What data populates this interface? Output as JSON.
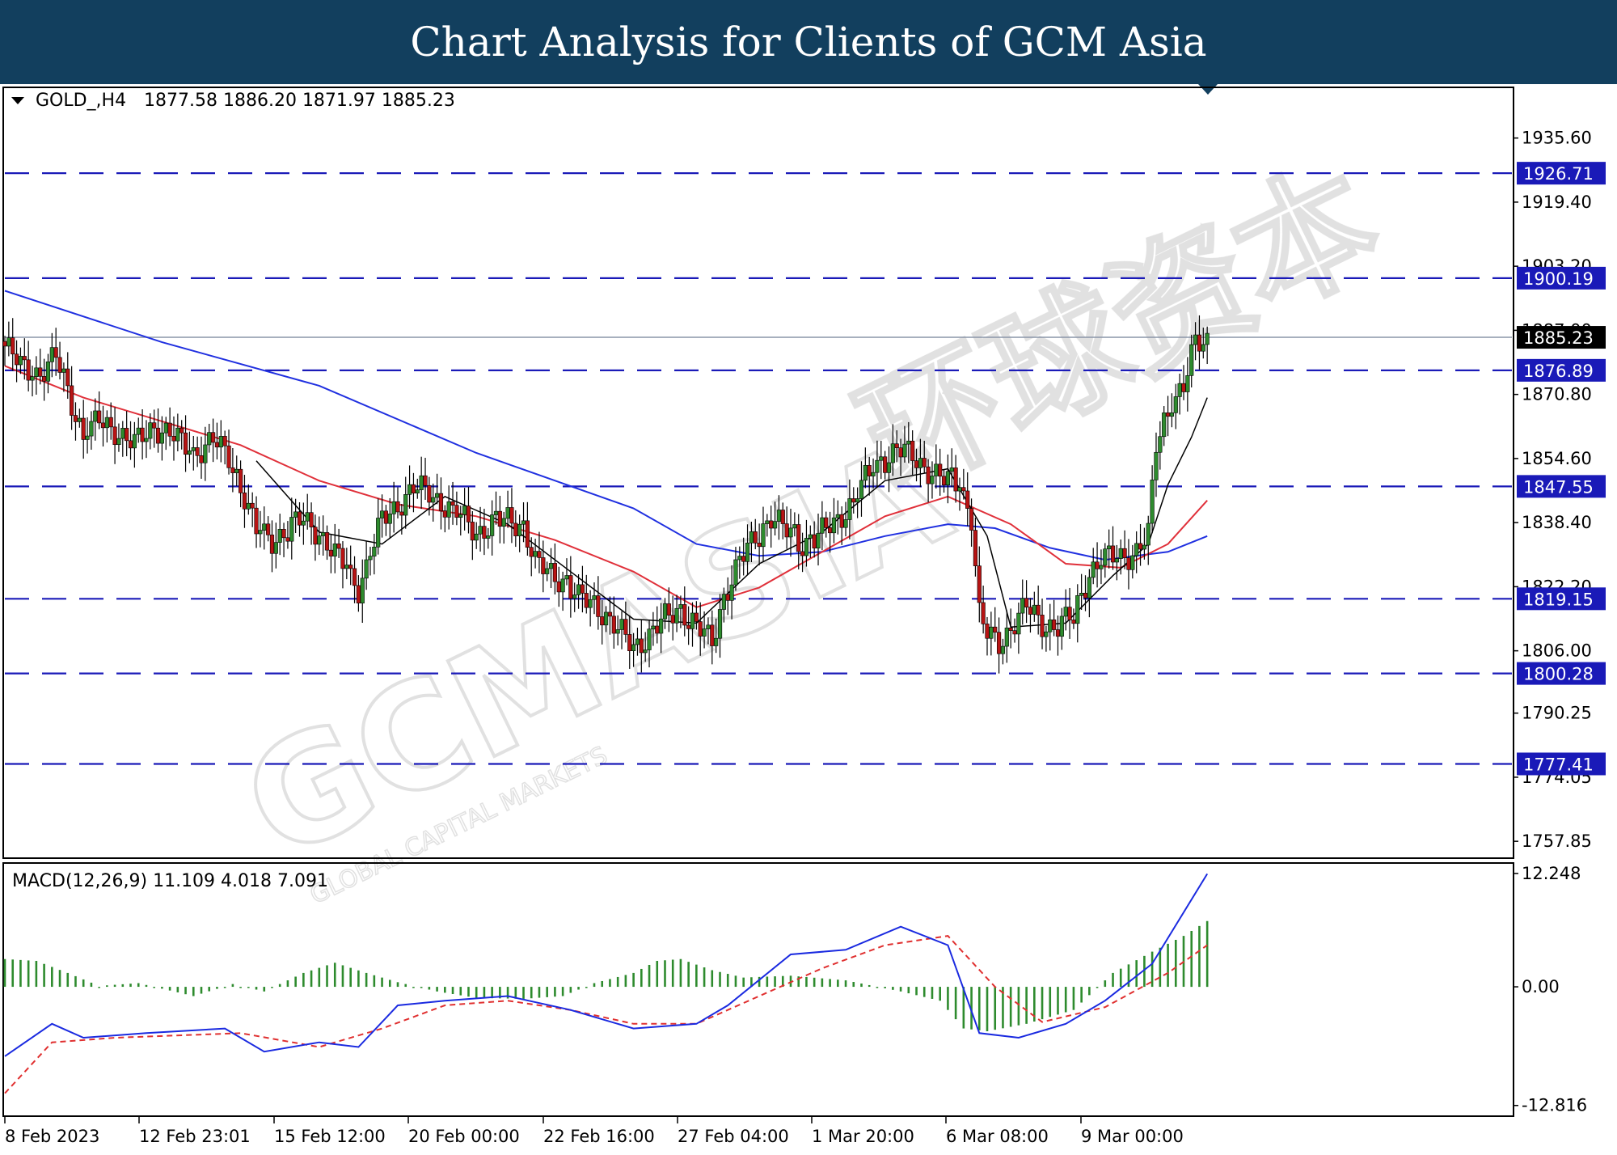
{
  "banner": {
    "title": "Chart Analysis for Clients of GCM Asia"
  },
  "colors": {
    "banner": "#123f5e",
    "level_line": "#1a1ab8",
    "current_price": "#000000",
    "ma_fast": "#000000",
    "ma_mid": "#e0303a",
    "ma_slow": "#2030e0",
    "candle_bull": "#2e8b2e",
    "candle_bear": "#b81414",
    "macd_line": "#1a2ae0",
    "macd_signal": "#e03030",
    "macd_hist": "#2e8b2e"
  },
  "watermark": {
    "text": "GCMASIA",
    "subtext": "GLOBAL CAPITAL MARKETS",
    "cn_text": "环球资本"
  },
  "chart_data": [
    {
      "type": "candlestick",
      "symbol_label": "GOLD_,H4",
      "ohlc_label": "1877.58 1886.20 1871.97 1885.23",
      "ylim": [
        1754,
        1948
      ],
      "price_ticks": [
        "1935.60",
        "1919.40",
        "1903.20",
        "1887.00",
        "1870.80",
        "1854.60",
        "1838.40",
        "1822.20",
        "1806.00",
        "1790.25",
        "1774.05",
        "1757.85"
      ],
      "x_ticks": [
        "8 Feb 2023",
        "12 Feb 23:01",
        "15 Feb 12:00",
        "20 Feb 00:00",
        "22 Feb 16:00",
        "27 Feb 04:00",
        "1 Mar 20:00",
        "6 Mar 08:00",
        "9 Mar 00:00"
      ],
      "level_lines": [
        "1926.71",
        "1900.19",
        "1876.89",
        "1847.55",
        "1819.15",
        "1800.28",
        "1777.41"
      ],
      "current_price": "1885.23",
      "close_path": [
        [
          0,
          1883
        ],
        [
          4,
          1878
        ],
        [
          9,
          1876
        ],
        [
          13,
          1880
        ],
        [
          16,
          1872
        ],
        [
          20,
          1860
        ],
        [
          24,
          1864
        ],
        [
          28,
          1862
        ],
        [
          33,
          1858
        ],
        [
          38,
          1863
        ],
        [
          43,
          1860
        ],
        [
          48,
          1856
        ],
        [
          53,
          1859
        ],
        [
          57,
          1855
        ],
        [
          61,
          1845
        ],
        [
          64,
          1836
        ],
        [
          68,
          1834
        ],
        [
          72,
          1837
        ],
        [
          76,
          1839
        ],
        [
          80,
          1836
        ],
        [
          84,
          1830
        ],
        [
          87,
          1827
        ],
        [
          90,
          1822
        ],
        [
          93,
          1830
        ],
        [
          96,
          1839
        ],
        [
          100,
          1843
        ],
        [
          104,
          1847
        ],
        [
          108,
          1846
        ],
        [
          112,
          1843
        ],
        [
          116,
          1840
        ],
        [
          120,
          1836
        ],
        [
          124,
          1838
        ],
        [
          128,
          1839
        ],
        [
          132,
          1838
        ],
        [
          135,
          1828
        ],
        [
          138,
          1826
        ],
        [
          142,
          1824
        ],
        [
          146,
          1819
        ],
        [
          150,
          1818
        ],
        [
          153,
          1815
        ],
        [
          156,
          1811
        ],
        [
          160,
          1807
        ],
        [
          164,
          1810
        ],
        [
          168,
          1814
        ],
        [
          172,
          1817
        ],
        [
          176,
          1812
        ],
        [
          180,
          1808
        ],
        [
          183,
          1820
        ],
        [
          187,
          1828
        ],
        [
          191,
          1835
        ],
        [
          195,
          1840
        ],
        [
          199,
          1836
        ],
        [
          203,
          1833
        ],
        [
          207,
          1835
        ],
        [
          211,
          1838
        ],
        [
          215,
          1843
        ],
        [
          219,
          1849
        ],
        [
          223,
          1854
        ],
        [
          227,
          1857
        ],
        [
          231,
          1855
        ],
        [
          235,
          1852
        ],
        [
          239,
          1849
        ],
        [
          243,
          1848
        ],
        [
          246,
          1840
        ],
        [
          248,
          1815
        ],
        [
          250,
          1810
        ],
        [
          253,
          1808
        ],
        [
          256,
          1812
        ],
        [
          260,
          1817
        ],
        [
          264,
          1813
        ],
        [
          268,
          1812
        ],
        [
          272,
          1815
        ],
        [
          276,
          1826
        ],
        [
          280,
          1829
        ],
        [
          284,
          1830
        ],
        [
          288,
          1831
        ],
        [
          291,
          1835
        ],
        [
          293,
          1858
        ],
        [
          296,
          1868
        ],
        [
          300,
          1872
        ],
        [
          303,
          1884
        ],
        [
          306,
          1885
        ]
      ],
      "ma_fast_path": [
        [
          64,
          1854
        ],
        [
          80,
          1836
        ],
        [
          96,
          1833
        ],
        [
          112,
          1845
        ],
        [
          128,
          1838
        ],
        [
          144,
          1826
        ],
        [
          160,
          1814
        ],
        [
          176,
          1813
        ],
        [
          192,
          1828
        ],
        [
          208,
          1836
        ],
        [
          224,
          1849
        ],
        [
          240,
          1852
        ],
        [
          250,
          1835
        ],
        [
          256,
          1812
        ],
        [
          270,
          1813
        ],
        [
          282,
          1825
        ],
        [
          291,
          1833
        ],
        [
          296,
          1848
        ],
        [
          302,
          1860
        ],
        [
          306,
          1870
        ]
      ],
      "ma_mid_path": [
        [
          0,
          1878
        ],
        [
          20,
          1870
        ],
        [
          40,
          1864
        ],
        [
          60,
          1858
        ],
        [
          80,
          1849
        ],
        [
          100,
          1843
        ],
        [
          120,
          1840
        ],
        [
          140,
          1834
        ],
        [
          160,
          1826
        ],
        [
          176,
          1817
        ],
        [
          192,
          1822
        ],
        [
          208,
          1831
        ],
        [
          224,
          1840
        ],
        [
          240,
          1845
        ],
        [
          256,
          1838
        ],
        [
          270,
          1828
        ],
        [
          284,
          1827
        ],
        [
          296,
          1833
        ],
        [
          306,
          1844
        ]
      ],
      "ma_slow_path": [
        [
          0,
          1897
        ],
        [
          40,
          1884
        ],
        [
          80,
          1873
        ],
        [
          120,
          1856
        ],
        [
          160,
          1842
        ],
        [
          176,
          1833
        ],
        [
          192,
          1830
        ],
        [
          208,
          1831
        ],
        [
          224,
          1835
        ],
        [
          240,
          1838
        ],
        [
          252,
          1837
        ],
        [
          266,
          1832
        ],
        [
          280,
          1829
        ],
        [
          296,
          1831
        ],
        [
          306,
          1835
        ]
      ]
    },
    {
      "type": "macd",
      "label": "MACD(12,26,9) 11.109 4.018 7.091",
      "ylim": [
        -13.8,
        13.2
      ],
      "ticks": [
        "12.248",
        "0.00",
        "-12.816"
      ],
      "macd_path": [
        [
          0,
          -7.5
        ],
        [
          12,
          -4.0
        ],
        [
          20,
          -5.5
        ],
        [
          36,
          -5.0
        ],
        [
          56,
          -4.5
        ],
        [
          66,
          -7.0
        ],
        [
          80,
          -6.0
        ],
        [
          90,
          -6.5
        ],
        [
          100,
          -2.0
        ],
        [
          112,
          -1.5
        ],
        [
          128,
          -1.0
        ],
        [
          144,
          -2.5
        ],
        [
          160,
          -4.5
        ],
        [
          176,
          -4.0
        ],
        [
          184,
          -2.0
        ],
        [
          200,
          3.5
        ],
        [
          214,
          4.0
        ],
        [
          228,
          6.5
        ],
        [
          240,
          4.5
        ],
        [
          248,
          -5.0
        ],
        [
          258,
          -5.5
        ],
        [
          270,
          -4.0
        ],
        [
          280,
          -1.5
        ],
        [
          292,
          2.5
        ],
        [
          306,
          12.2
        ]
      ],
      "signal_path": [
        [
          0,
          -11.5
        ],
        [
          12,
          -6.0
        ],
        [
          28,
          -5.5
        ],
        [
          60,
          -5.0
        ],
        [
          80,
          -6.5
        ],
        [
          96,
          -4.5
        ],
        [
          112,
          -2.0
        ],
        [
          128,
          -1.5
        ],
        [
          144,
          -2.5
        ],
        [
          160,
          -4.0
        ],
        [
          176,
          -4.0
        ],
        [
          192,
          -1.0
        ],
        [
          208,
          2.0
        ],
        [
          224,
          4.5
        ],
        [
          240,
          5.5
        ],
        [
          252,
          0.0
        ],
        [
          264,
          -3.8
        ],
        [
          280,
          -2.2
        ],
        [
          296,
          1.5
        ],
        [
          306,
          4.5
        ]
      ],
      "histogram": [
        [
          0,
          3.0
        ],
        [
          8,
          2.8
        ],
        [
          16,
          1.5
        ],
        [
          24,
          0.1
        ],
        [
          34,
          0.4
        ],
        [
          48,
          -1.0
        ],
        [
          58,
          0.3
        ],
        [
          66,
          -0.5
        ],
        [
          76,
          1.5
        ],
        [
          84,
          2.6
        ],
        [
          92,
          1.5
        ],
        [
          100,
          0.5
        ],
        [
          110,
          -0.5
        ],
        [
          120,
          -1.2
        ],
        [
          132,
          -1.3
        ],
        [
          142,
          -1.0
        ],
        [
          150,
          0.4
        ],
        [
          160,
          1.5
        ],
        [
          166,
          2.8
        ],
        [
          172,
          3.0
        ],
        [
          180,
          1.8
        ],
        [
          188,
          1.0
        ],
        [
          200,
          1.2
        ],
        [
          214,
          0.7
        ],
        [
          228,
          -0.5
        ],
        [
          238,
          -1.5
        ],
        [
          244,
          -4.5
        ],
        [
          250,
          -4.8
        ],
        [
          260,
          -4.0
        ],
        [
          272,
          -2.5
        ],
        [
          282,
          1.5
        ],
        [
          292,
          3.8
        ],
        [
          300,
          5.5
        ],
        [
          306,
          7.1
        ]
      ]
    }
  ]
}
